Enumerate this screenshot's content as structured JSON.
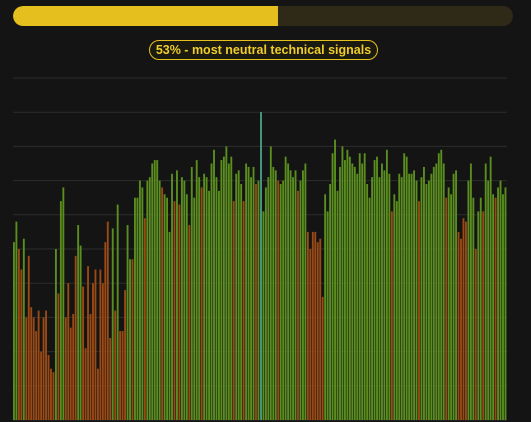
{
  "progress": {
    "percent": 53,
    "label": "53% - most neutral technical signals",
    "fill_color": "#e5bf1d",
    "track_color": "#2e2a17"
  },
  "chart_data": {
    "type": "bar",
    "title": "",
    "xlabel": "",
    "ylabel": "",
    "ylim": [
      0,
      100
    ],
    "grid": true,
    "marker_index": 100,
    "colors": {
      "neutral": "#5a8f1f",
      "other": "#9a4a14",
      "marker": "#3a9db8"
    },
    "values": [
      52,
      58,
      50,
      44,
      53,
      30,
      48,
      33,
      30,
      26,
      32,
      20,
      30,
      32,
      19,
      15,
      14,
      50,
      37,
      64,
      68,
      30,
      40,
      27,
      31,
      48,
      57,
      51,
      39,
      21,
      45,
      31,
      40,
      44,
      15,
      44,
      40,
      52,
      58,
      24,
      56,
      32,
      63,
      26,
      26,
      38,
      57,
      47,
      47,
      65,
      65,
      70,
      68,
      59,
      70,
      71,
      75,
      76,
      76,
      70,
      68,
      66,
      65,
      55,
      72,
      64,
      73,
      63,
      71,
      70,
      66,
      57,
      74,
      65,
      76,
      71,
      68,
      72,
      71,
      67,
      75,
      79,
      71,
      67,
      76,
      77,
      80,
      75,
      77,
      64,
      72,
      73,
      69,
      64,
      75,
      74,
      71,
      74,
      69,
      70,
      90,
      61,
      68,
      71,
      80,
      74,
      73,
      70,
      69,
      70,
      77,
      75,
      73,
      71,
      73,
      67,
      70,
      73,
      75,
      55,
      50,
      55,
      55,
      52,
      53,
      36,
      66,
      61,
      69,
      78,
      82,
      67,
      74,
      80,
      76,
      79,
      77,
      75,
      74,
      72,
      78,
      75,
      78,
      69,
      65,
      71,
      76,
      77,
      71,
      75,
      73,
      79,
      72,
      61,
      66,
      64,
      72,
      71,
      78,
      77,
      72,
      72,
      73,
      70,
      64,
      71,
      74,
      69,
      70,
      72,
      74,
      75,
      78,
      79,
      75,
      65,
      68,
      66,
      72,
      73,
      55,
      53,
      59,
      58,
      70,
      75,
      65,
      50,
      61,
      65,
      61,
      75,
      70,
      77,
      66,
      65,
      68,
      70,
      66,
      68
    ],
    "categories": [
      "n",
      "n",
      "o",
      "o",
      "n",
      "o",
      "o",
      "o",
      "o",
      "o",
      "o",
      "o",
      "o",
      "o",
      "o",
      "o",
      "o",
      "n",
      "o",
      "n",
      "n",
      "o",
      "o",
      "o",
      "o",
      "o",
      "n",
      "n",
      "o",
      "o",
      "o",
      "o",
      "o",
      "o",
      "o",
      "o",
      "o",
      "o",
      "o",
      "o",
      "n",
      "o",
      "n",
      "o",
      "o",
      "o",
      "n",
      "n",
      "o",
      "n",
      "n",
      "n",
      "n",
      "o",
      "n",
      "n",
      "n",
      "n",
      "n",
      "n",
      "o",
      "n",
      "n",
      "n",
      "n",
      "o",
      "n",
      "o",
      "n",
      "n",
      "n",
      "o",
      "n",
      "n",
      "n",
      "n",
      "o",
      "n",
      "n",
      "n",
      "n",
      "n",
      "n",
      "n",
      "n",
      "n",
      "n",
      "n",
      "n",
      "o",
      "n",
      "n",
      "n",
      "o",
      "n",
      "n",
      "n",
      "n",
      "o",
      "n",
      "n",
      "n",
      "n",
      "n",
      "n",
      "n",
      "n",
      "o",
      "n",
      "n",
      "n",
      "n",
      "n",
      "n",
      "n",
      "o",
      "n",
      "n",
      "n",
      "o",
      "o",
      "o",
      "o",
      "o",
      "o",
      "o",
      "n",
      "n",
      "n",
      "n",
      "n",
      "n",
      "n",
      "n",
      "n",
      "n",
      "n",
      "n",
      "n",
      "n",
      "n",
      "n",
      "n",
      "n",
      "n",
      "n",
      "n",
      "n",
      "n",
      "n",
      "n",
      "n",
      "n",
      "o",
      "n",
      "n",
      "n",
      "n",
      "n",
      "n",
      "n",
      "n",
      "n",
      "n",
      "o",
      "n",
      "n",
      "n",
      "n",
      "n",
      "n",
      "n",
      "n",
      "n",
      "n",
      "o",
      "n",
      "n",
      "n",
      "n",
      "o",
      "o",
      "o",
      "o",
      "n",
      "n",
      "n",
      "o",
      "n",
      "n",
      "o",
      "n",
      "n",
      "n",
      "n",
      "o",
      "n",
      "n",
      "n",
      "n"
    ]
  }
}
